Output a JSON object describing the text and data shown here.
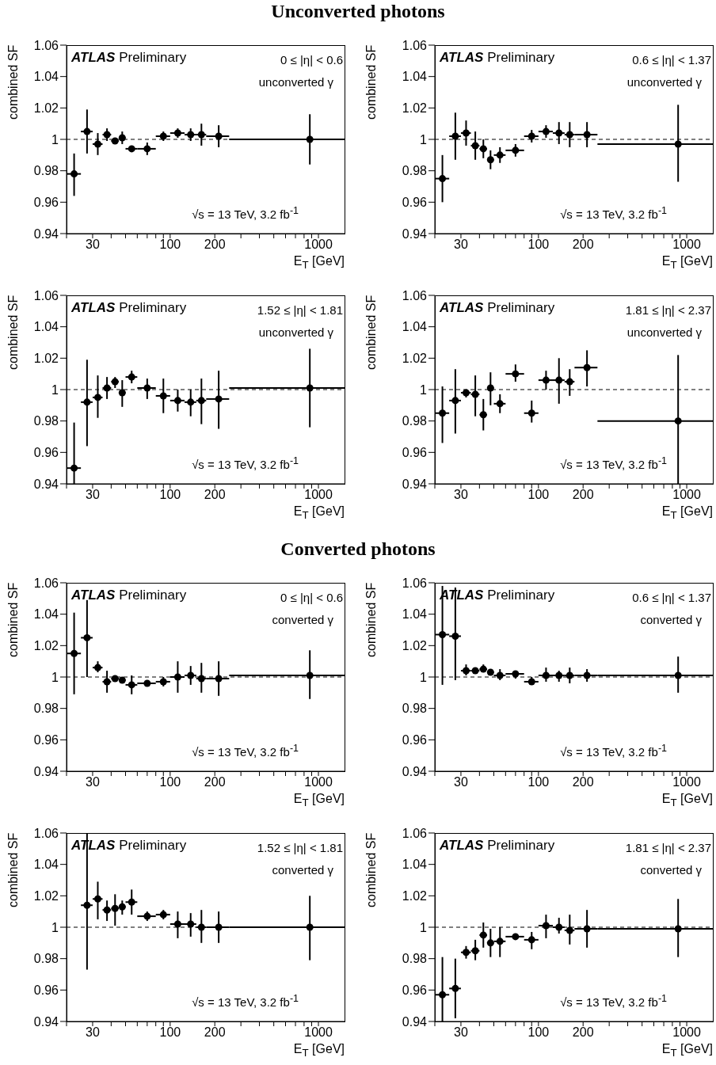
{
  "chart_data": [
    {
      "type": "scatter",
      "title": "Unconverted photons",
      "xlabel": "E$_{T}$ [GeV]",
      "ylabel": "combined SF",
      "annotations": [
        "ATLAS Preliminary",
        "0 ≤ |η| < 0.6",
        "unconverted γ",
        "√s = 13 TeV, 3.2 fb$^{-1}$"
      ],
      "log": "x",
      "marker": "circle",
      "color": "#000000",
      "xlim": [
        20,
        1500
      ],
      "ylim": [
        0.94,
        1.06
      ],
      "xticks": [
        {
          "value": 20,
          "label": null
        },
        30,
        {
          "value": 40,
          "label": null
        },
        {
          "value": 50,
          "label": null
        },
        {
          "value": 60,
          "label": null
        },
        {
          "value": 70,
          "label": null
        },
        {
          "value": 80,
          "label": null
        },
        {
          "value": 90,
          "label": null
        },
        100,
        200,
        {
          "value": 300,
          "label": null
        },
        {
          "value": 400,
          "label": null
        },
        {
          "value": 500,
          "label": null
        },
        {
          "value": 600,
          "label": null
        },
        {
          "value": 700,
          "label": null
        },
        {
          "value": 800,
          "label": null
        },
        {
          "value": 900,
          "label": null
        },
        1000
      ],
      "yticks": [
        0.94,
        0.96,
        0.98,
        1,
        1.02,
        1.04,
        1.06
      ],
      "ref_lines": [
        {
          "axis": "y",
          "value": 1,
          "line_style": "dashed"
        }
      ],
      "x": [
        22.5,
        27.5,
        32.5,
        37.5,
        42.5,
        47.5,
        55,
        70,
        90,
        112.5,
        137.5,
        162.5,
        212.5,
        875
      ],
      "xerrors": [
        2.5,
        2.5,
        2.5,
        2.5,
        2.5,
        2.5,
        5,
        10,
        10,
        12.5,
        12.5,
        12.5,
        37.5,
        625
      ],
      "values": [
        0.978,
        1.005,
        0.997,
        1.003,
        0.999,
        1.001,
        0.994,
        0.994,
        1.002,
        1.004,
        1.003,
        1.003,
        1.002,
        1.0
      ],
      "errors": [
        [
          0.964,
          0.991
        ],
        [
          0.991,
          1.019
        ],
        [
          0.99,
          1.004
        ],
        [
          0.999,
          1.007
        ],
        [
          0.997,
          1.001
        ],
        [
          0.997,
          1.005
        ],
        [
          0.992,
          0.996
        ],
        [
          0.99,
          0.998
        ],
        [
          0.999,
          1.005
        ],
        [
          1.001,
          1.007
        ],
        [
          0.999,
          1.007
        ],
        [
          0.996,
          1.01
        ],
        [
          0.995,
          1.009
        ],
        [
          0.984,
          1.016
        ]
      ]
    },
    {
      "type": "scatter",
      "xlabel": "E$_{T}$ [GeV]",
      "ylabel": "combined SF",
      "annotations": [
        "ATLAS Preliminary",
        "0.6 ≤ |η| < 1.37",
        "unconverted γ",
        "√s = 13 TeV, 3.2 fb$^{-1}$"
      ],
      "log": "x",
      "marker": "circle",
      "color": "#000000",
      "xlim": [
        20,
        1500
      ],
      "ylim": [
        0.94,
        1.06
      ],
      "xticks": [
        {
          "value": 20,
          "label": null
        },
        30,
        {
          "value": 40,
          "label": null
        },
        {
          "value": 50,
          "label": null
        },
        {
          "value": 60,
          "label": null
        },
        {
          "value": 70,
          "label": null
        },
        {
          "value": 80,
          "label": null
        },
        {
          "value": 90,
          "label": null
        },
        100,
        200,
        {
          "value": 300,
          "label": null
        },
        {
          "value": 400,
          "label": null
        },
        {
          "value": 500,
          "label": null
        },
        {
          "value": 600,
          "label": null
        },
        {
          "value": 700,
          "label": null
        },
        {
          "value": 800,
          "label": null
        },
        {
          "value": 900,
          "label": null
        },
        1000
      ],
      "yticks": [
        0.94,
        0.96,
        0.98,
        1,
        1.02,
        1.04,
        1.06
      ],
      "ref_lines": [
        {
          "axis": "y",
          "value": 1,
          "line_style": "dashed"
        }
      ],
      "x": [
        22.5,
        27.5,
        32.5,
        37.5,
        42.5,
        47.5,
        55,
        70,
        90,
        112.5,
        137.5,
        162.5,
        212.5,
        875
      ],
      "xerrors": [
        2.5,
        2.5,
        2.5,
        2.5,
        2.5,
        2.5,
        5,
        10,
        10,
        12.5,
        12.5,
        12.5,
        37.5,
        625
      ],
      "values": [
        0.975,
        1.002,
        1.004,
        0.996,
        0.994,
        0.987,
        0.99,
        0.993,
        1.002,
        1.005,
        1.004,
        1.003,
        1.003,
        0.997
      ],
      "errors": [
        [
          0.96,
          0.99
        ],
        [
          0.987,
          1.017
        ],
        [
          0.996,
          1.012
        ],
        [
          0.987,
          1.005
        ],
        [
          0.988,
          1.0
        ],
        [
          0.981,
          0.993
        ],
        [
          0.985,
          0.995
        ],
        [
          0.989,
          0.997
        ],
        [
          0.998,
          1.006
        ],
        [
          1.001,
          1.009
        ],
        [
          0.997,
          1.011
        ],
        [
          0.995,
          1.011
        ],
        [
          0.995,
          1.011
        ],
        [
          0.973,
          1.022
        ]
      ]
    },
    {
      "type": "scatter",
      "xlabel": "E$_{T}$ [GeV]",
      "ylabel": "combined SF",
      "annotations": [
        "ATLAS Preliminary",
        "1.52 ≤ |η| < 1.81",
        "unconverted γ",
        "√s = 13 TeV, 3.2 fb$^{-1}$"
      ],
      "log": "x",
      "marker": "circle",
      "color": "#000000",
      "xlim": [
        20,
        1500
      ],
      "ylim": [
        0.94,
        1.06
      ],
      "xticks": [
        {
          "value": 20,
          "label": null
        },
        30,
        {
          "value": 40,
          "label": null
        },
        {
          "value": 50,
          "label": null
        },
        {
          "value": 60,
          "label": null
        },
        {
          "value": 70,
          "label": null
        },
        {
          "value": 80,
          "label": null
        },
        {
          "value": 90,
          "label": null
        },
        100,
        200,
        {
          "value": 300,
          "label": null
        },
        {
          "value": 400,
          "label": null
        },
        {
          "value": 500,
          "label": null
        },
        {
          "value": 600,
          "label": null
        },
        {
          "value": 700,
          "label": null
        },
        {
          "value": 800,
          "label": null
        },
        {
          "value": 900,
          "label": null
        },
        1000
      ],
      "yticks": [
        0.94,
        0.96,
        0.98,
        1,
        1.02,
        1.04,
        1.06
      ],
      "ref_lines": [
        {
          "axis": "y",
          "value": 1,
          "line_style": "dashed"
        }
      ],
      "x": [
        22.5,
        27.5,
        32.5,
        37.5,
        42.5,
        47.5,
        55,
        70,
        90,
        112.5,
        137.5,
        162.5,
        212.5,
        875
      ],
      "xerrors": [
        2.5,
        2.5,
        2.5,
        2.5,
        2.5,
        2.5,
        5,
        10,
        10,
        12.5,
        12.5,
        12.5,
        37.5,
        625
      ],
      "values": [
        0.95,
        0.992,
        0.995,
        1.001,
        1.005,
        0.998,
        1.008,
        1.001,
        0.996,
        0.993,
        0.992,
        0.993,
        0.994,
        1.001
      ],
      "errors": [
        [
          0.94,
          0.979
        ],
        [
          0.964,
          1.019
        ],
        [
          0.982,
          1.009
        ],
        [
          0.994,
          1.008
        ],
        [
          1.001,
          1.008
        ],
        [
          0.989,
          1.006
        ],
        [
          1.004,
          1.012
        ],
        [
          0.994,
          1.007
        ],
        [
          0.985,
          1.007
        ],
        [
          0.986,
          1.0
        ],
        [
          0.983,
          1.0
        ],
        [
          0.978,
          1.007
        ],
        [
          0.975,
          1.012
        ],
        [
          0.976,
          1.026
        ]
      ]
    },
    {
      "type": "scatter",
      "xlabel": "E$_{T}$ [GeV]",
      "ylabel": "combined SF",
      "annotations": [
        "ATLAS Preliminary",
        "1.81 ≤ |η| < 2.37",
        "unconverted γ",
        "√s = 13 TeV, 3.2 fb$^{-1}$"
      ],
      "log": "x",
      "marker": "circle",
      "color": "#000000",
      "xlim": [
        20,
        1500
      ],
      "ylim": [
        0.94,
        1.06
      ],
      "xticks": [
        {
          "value": 20,
          "label": null
        },
        30,
        {
          "value": 40,
          "label": null
        },
        {
          "value": 50,
          "label": null
        },
        {
          "value": 60,
          "label": null
        },
        {
          "value": 70,
          "label": null
        },
        {
          "value": 80,
          "label": null
        },
        {
          "value": 90,
          "label": null
        },
        100,
        200,
        {
          "value": 300,
          "label": null
        },
        {
          "value": 400,
          "label": null
        },
        {
          "value": 500,
          "label": null
        },
        {
          "value": 600,
          "label": null
        },
        {
          "value": 700,
          "label": null
        },
        {
          "value": 800,
          "label": null
        },
        {
          "value": 900,
          "label": null
        },
        1000
      ],
      "yticks": [
        0.94,
        0.96,
        0.98,
        1,
        1.02,
        1.04,
        1.06
      ],
      "ref_lines": [
        {
          "axis": "y",
          "value": 1,
          "line_style": "dashed"
        }
      ],
      "x": [
        22.5,
        27.5,
        32.5,
        37.5,
        42.5,
        47.5,
        55,
        70,
        90,
        112.5,
        137.5,
        162.5,
        212.5,
        875
      ],
      "xerrors": [
        2.5,
        2.5,
        2.5,
        2.5,
        2.5,
        2.5,
        5,
        10,
        10,
        12.5,
        12.5,
        12.5,
        37.5,
        625
      ],
      "values": [
        0.985,
        0.993,
        0.998,
        0.997,
        0.984,
        1.001,
        0.991,
        1.01,
        0.985,
        1.006,
        1.006,
        1.005,
        1.014,
        0.98
      ],
      "errors": [
        [
          0.966,
          1.002
        ],
        [
          0.972,
          1.013
        ],
        [
          0.995,
          1.0
        ],
        [
          0.983,
          1.009
        ],
        [
          0.974,
          0.994
        ],
        [
          0.99,
          1.011
        ],
        [
          0.985,
          0.997
        ],
        [
          1.005,
          1.016
        ],
        [
          0.979,
          0.993
        ],
        [
          1.0,
          1.012
        ],
        [
          0.991,
          1.02
        ],
        [
          0.996,
          1.013
        ],
        [
          1.002,
          1.025
        ],
        [
          0.94,
          1.022
        ]
      ]
    },
    {
      "type": "scatter",
      "title": "Converted photons",
      "xlabel": "E$_{T}$ [GeV]",
      "ylabel": "combined SF",
      "annotations": [
        "ATLAS Preliminary",
        "0 ≤ |η| < 0.6",
        "converted γ",
        "√s = 13 TeV, 3.2 fb$^{-1}$"
      ],
      "log": "x",
      "marker": "circle",
      "color": "#000000",
      "xlim": [
        20,
        1500
      ],
      "ylim": [
        0.94,
        1.06
      ],
      "xticks": [
        {
          "value": 20,
          "label": null
        },
        30,
        {
          "value": 40,
          "label": null
        },
        {
          "value": 50,
          "label": null
        },
        {
          "value": 60,
          "label": null
        },
        {
          "value": 70,
          "label": null
        },
        {
          "value": 80,
          "label": null
        },
        {
          "value": 90,
          "label": null
        },
        100,
        200,
        {
          "value": 300,
          "label": null
        },
        {
          "value": 400,
          "label": null
        },
        {
          "value": 500,
          "label": null
        },
        {
          "value": 600,
          "label": null
        },
        {
          "value": 700,
          "label": null
        },
        {
          "value": 800,
          "label": null
        },
        {
          "value": 900,
          "label": null
        },
        1000
      ],
      "yticks": [
        0.94,
        0.96,
        0.98,
        1,
        1.02,
        1.04,
        1.06
      ],
      "ref_lines": [
        {
          "axis": "y",
          "value": 1,
          "line_style": "dashed"
        }
      ],
      "x": [
        22.5,
        27.5,
        32.5,
        37.5,
        42.5,
        47.5,
        55,
        70,
        90,
        112.5,
        137.5,
        162.5,
        212.5,
        875
      ],
      "xerrors": [
        2.5,
        2.5,
        2.5,
        2.5,
        2.5,
        2.5,
        5,
        10,
        10,
        12.5,
        12.5,
        12.5,
        37.5,
        625
      ],
      "values": [
        1.015,
        1.025,
        1.006,
        0.997,
        0.999,
        0.998,
        0.995,
        0.996,
        0.997,
        1.0,
        1.001,
        0.999,
        0.999,
        1.001
      ],
      "errors": [
        [
          0.989,
          1.041
        ],
        [
          1.0,
          1.049
        ],
        [
          1.003,
          1.01
        ],
        [
          0.99,
          1.004
        ],
        [
          0.998,
          1.0
        ],
        [
          0.997,
          1.0
        ],
        [
          0.989,
          1.001
        ],
        [
          0.994,
          0.997
        ],
        [
          0.994,
          1.0
        ],
        [
          0.99,
          1.01
        ],
        [
          0.995,
          1.007
        ],
        [
          0.99,
          1.009
        ],
        [
          0.988,
          1.01
        ],
        [
          0.986,
          1.017
        ]
      ]
    },
    {
      "type": "scatter",
      "xlabel": "E$_{T}$ [GeV]",
      "ylabel": "combined SF",
      "annotations": [
        "ATLAS Preliminary",
        "0.6 ≤ |η| < 1.37",
        "converted γ",
        "√s = 13 TeV, 3.2 fb$^{-1}$"
      ],
      "log": "x",
      "marker": "circle",
      "color": "#000000",
      "xlim": [
        20,
        1500
      ],
      "ylim": [
        0.94,
        1.06
      ],
      "xticks": [
        {
          "value": 20,
          "label": null
        },
        30,
        {
          "value": 40,
          "label": null
        },
        {
          "value": 50,
          "label": null
        },
        {
          "value": 60,
          "label": null
        },
        {
          "value": 70,
          "label": null
        },
        {
          "value": 80,
          "label": null
        },
        {
          "value": 90,
          "label": null
        },
        100,
        200,
        {
          "value": 300,
          "label": null
        },
        {
          "value": 400,
          "label": null
        },
        {
          "value": 500,
          "label": null
        },
        {
          "value": 600,
          "label": null
        },
        {
          "value": 700,
          "label": null
        },
        {
          "value": 800,
          "label": null
        },
        {
          "value": 900,
          "label": null
        },
        1000
      ],
      "yticks": [
        0.94,
        0.96,
        0.98,
        1,
        1.02,
        1.04,
        1.06
      ],
      "ref_lines": [
        {
          "axis": "y",
          "value": 1,
          "line_style": "dashed"
        }
      ],
      "x": [
        22.5,
        27.5,
        32.5,
        37.5,
        42.5,
        47.5,
        55,
        70,
        90,
        112.5,
        137.5,
        162.5,
        212.5,
        875
      ],
      "xerrors": [
        2.5,
        2.5,
        2.5,
        2.5,
        2.5,
        2.5,
        5,
        10,
        10,
        12.5,
        12.5,
        12.5,
        37.5,
        625
      ],
      "values": [
        1.027,
        1.026,
        1.004,
        1.004,
        1.005,
        1.003,
        1.001,
        1.002,
        0.997,
        1.001,
        1.001,
        1.001,
        1.001,
        1.001
      ],
      "errors": [
        [
          0.995,
          1.058
        ],
        [
          0.998,
          1.057
        ],
        [
          1.001,
          1.008
        ],
        [
          1.002,
          1.006
        ],
        [
          1.003,
          1.008
        ],
        [
          1.003,
          1.004
        ],
        [
          0.998,
          1.005
        ],
        [
          0.999,
          1.004
        ],
        [
          0.995,
          1.0
        ],
        [
          0.997,
          1.006
        ],
        [
          0.997,
          1.004
        ],
        [
          0.996,
          1.006
        ],
        [
          0.997,
          1.005
        ],
        [
          0.99,
          1.013
        ]
      ]
    },
    {
      "type": "scatter",
      "xlabel": "E$_{T}$ [GeV]",
      "ylabel": "combined SF",
      "annotations": [
        "ATLAS Preliminary",
        "1.52 ≤ |η| < 1.81",
        "converted γ",
        "√s = 13 TeV, 3.2 fb$^{-1}$"
      ],
      "log": "x",
      "marker": "circle",
      "color": "#000000",
      "xlim": [
        20,
        1500
      ],
      "ylim": [
        0.94,
        1.06
      ],
      "xticks": [
        {
          "value": 20,
          "label": null
        },
        30,
        {
          "value": 40,
          "label": null
        },
        {
          "value": 50,
          "label": null
        },
        {
          "value": 60,
          "label": null
        },
        {
          "value": 70,
          "label": null
        },
        {
          "value": 80,
          "label": null
        },
        {
          "value": 90,
          "label": null
        },
        100,
        200,
        {
          "value": 300,
          "label": null
        },
        {
          "value": 400,
          "label": null
        },
        {
          "value": 500,
          "label": null
        },
        {
          "value": 600,
          "label": null
        },
        {
          "value": 700,
          "label": null
        },
        {
          "value": 800,
          "label": null
        },
        {
          "value": 900,
          "label": null
        },
        1000
      ],
      "yticks": [
        0.94,
        0.96,
        0.98,
        1,
        1.02,
        1.04,
        1.06
      ],
      "ref_lines": [
        {
          "axis": "y",
          "value": 1,
          "line_style": "dashed"
        }
      ],
      "x": [
        27.5,
        32.5,
        37.5,
        42.5,
        47.5,
        55,
        70,
        90,
        112.5,
        137.5,
        162.5,
        212.5,
        875
      ],
      "xerrors": [
        2.5,
        2.5,
        2.5,
        2.5,
        2.5,
        5,
        10,
        10,
        12.5,
        12.5,
        12.5,
        37.5,
        625
      ],
      "values": [
        1.014,
        1.018,
        1.011,
        1.012,
        1.013,
        1.016,
        1.007,
        1.008,
        1.002,
        1.002,
        1.0,
        1.0,
        1.0
      ],
      "errors": [
        [
          0.973,
          1.06
        ],
        [
          1.005,
          1.029
        ],
        [
          1.004,
          1.017
        ],
        [
          1.001,
          1.021
        ],
        [
          1.008,
          1.017
        ],
        [
          1.008,
          1.024
        ],
        [
          1.004,
          1.01
        ],
        [
          1.005,
          1.011
        ],
        [
          0.993,
          1.01
        ],
        [
          0.994,
          1.009
        ],
        [
          0.99,
          1.011
        ],
        [
          0.99,
          1.01
        ],
        [
          0.979,
          1.02
        ]
      ]
    },
    {
      "type": "scatter",
      "xlabel": "E$_{T}$ [GeV]",
      "ylabel": "combined SF",
      "annotations": [
        "ATLAS Preliminary",
        "1.81 ≤ |η| < 2.37",
        "converted γ",
        "√s = 13 TeV, 3.2 fb$^{-1}$"
      ],
      "log": "x",
      "marker": "circle",
      "color": "#000000",
      "xlim": [
        20,
        1500
      ],
      "ylim": [
        0.94,
        1.06
      ],
      "xticks": [
        {
          "value": 20,
          "label": null
        },
        30,
        {
          "value": 40,
          "label": null
        },
        {
          "value": 50,
          "label": null
        },
        {
          "value": 60,
          "label": null
        },
        {
          "value": 70,
          "label": null
        },
        {
          "value": 80,
          "label": null
        },
        {
          "value": 90,
          "label": null
        },
        100,
        200,
        {
          "value": 300,
          "label": null
        },
        {
          "value": 400,
          "label": null
        },
        {
          "value": 500,
          "label": null
        },
        {
          "value": 600,
          "label": null
        },
        {
          "value": 700,
          "label": null
        },
        {
          "value": 800,
          "label": null
        },
        {
          "value": 900,
          "label": null
        },
        1000
      ],
      "yticks": [
        0.94,
        0.96,
        0.98,
        1,
        1.02,
        1.04,
        1.06
      ],
      "ref_lines": [
        {
          "axis": "y",
          "value": 1,
          "line_style": "dashed"
        }
      ],
      "x": [
        22.5,
        27.5,
        32.5,
        37.5,
        42.5,
        47.5,
        55,
        70,
        90,
        112.5,
        137.5,
        162.5,
        212.5,
        875
      ],
      "xerrors": [
        2.5,
        2.5,
        2.5,
        2.5,
        2.5,
        2.5,
        5,
        10,
        10,
        12.5,
        12.5,
        12.5,
        37.5,
        625
      ],
      "values": [
        0.957,
        0.961,
        0.984,
        0.985,
        0.995,
        0.99,
        0.991,
        0.994,
        0.992,
        1.001,
        1.0,
        0.998,
        0.999,
        0.999
      ],
      "errors": [
        [
          0.94,
          0.981
        ],
        [
          0.942,
          0.98
        ],
        [
          0.98,
          0.988
        ],
        [
          0.979,
          0.992
        ],
        [
          0.987,
          1.003
        ],
        [
          0.981,
          0.999
        ],
        [
          0.981,
          1.0
        ],
        [
          0.992,
          0.996
        ],
        [
          0.986,
          0.997
        ],
        [
          0.993,
          1.008
        ],
        [
          0.996,
          1.006
        ],
        [
          0.989,
          1.008
        ],
        [
          0.987,
          1.011
        ],
        [
          0.981,
          1.018
        ]
      ]
    }
  ]
}
